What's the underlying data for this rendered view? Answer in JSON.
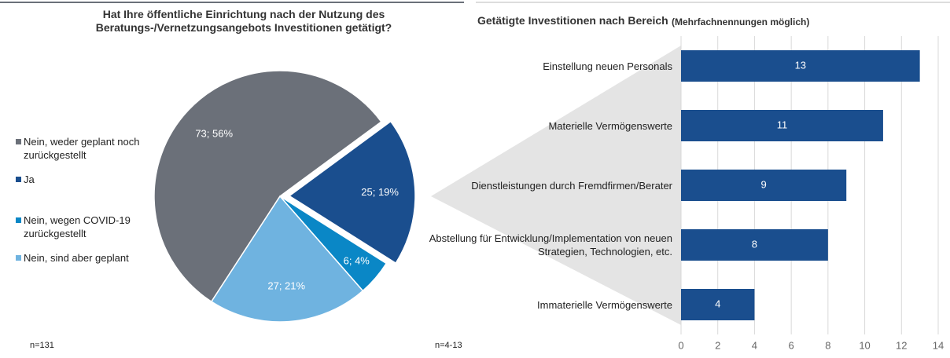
{
  "chart_data": [
    {
      "type": "pie",
      "title": "Hat Ihre öffentliche Einrichtung nach der Nutzung des Beratungs-/Vernetzungsangebots Investitionen getätigt?",
      "categories": [
        "Nein, weder geplant noch zurückgestellt",
        "Ja",
        "Nein, wegen COVID-19 zurückgestellt",
        "Nein, sind aber geplant"
      ],
      "values": [
        73,
        25,
        6,
        27
      ],
      "value_labels": [
        "73; 56%",
        "25; 19%",
        "6; 4%",
        "27; 21%"
      ],
      "colors": [
        "#6b7079",
        "#1a4e8e",
        "#0a87c6",
        "#6fb3e0"
      ],
      "annotation": "n=131"
    },
    {
      "type": "bar",
      "orientation": "horizontal",
      "title": "Getätigte Investitionen nach Bereich",
      "subtitle": "(Mehrfachnennungen möglich)",
      "categories": [
        "Einstellung neuen Personals",
        "Materielle Vermögenswerte",
        "Dienstleistungen durch Fremdfirmen/Berater",
        "Abstellung für Entwicklung/Implementation von neuen Strategien, Technologien, etc.",
        "Immaterielle Vermögenswerte"
      ],
      "values": [
        13,
        11,
        9,
        8,
        4
      ],
      "color": "#1a4e8e",
      "xlim": [
        0,
        14
      ],
      "xticks": [
        0,
        2,
        4,
        6,
        8,
        10,
        12,
        14
      ],
      "grid": true,
      "annotation": "n=4-13"
    }
  ]
}
